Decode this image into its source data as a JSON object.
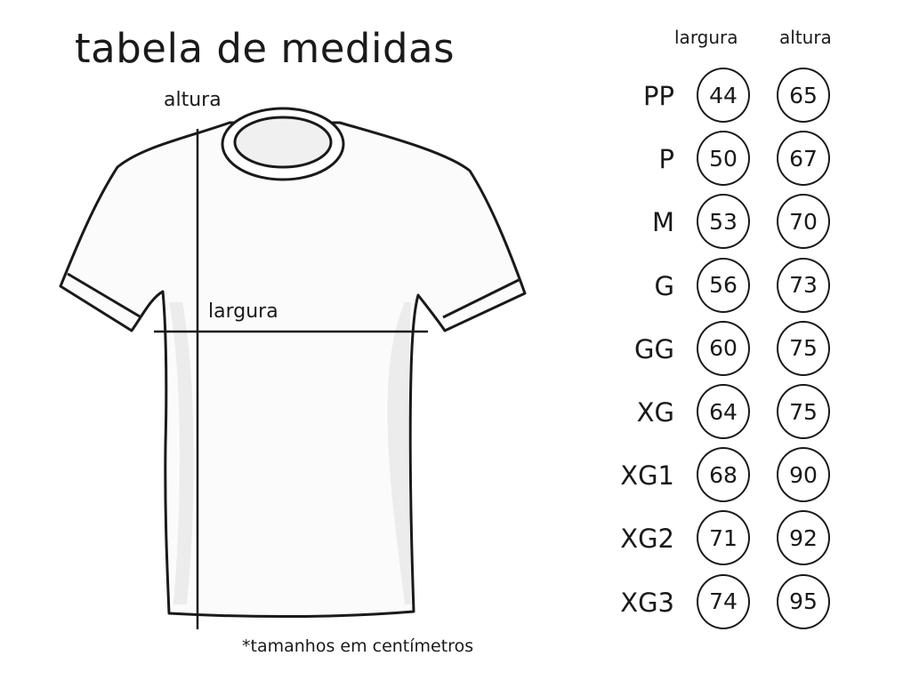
{
  "title": "tabela de medidas",
  "diagram": {
    "height_label": "altura",
    "width_label": "largura"
  },
  "table": {
    "columns": [
      "largura",
      "altura"
    ],
    "rows": [
      {
        "size": "PP",
        "largura": "44",
        "altura": "65"
      },
      {
        "size": "P",
        "largura": "50",
        "altura": "67"
      },
      {
        "size": "M",
        "largura": "53",
        "altura": "70"
      },
      {
        "size": "G",
        "largura": "56",
        "altura": "73"
      },
      {
        "size": "GG",
        "largura": "60",
        "altura": "75"
      },
      {
        "size": "XG",
        "largura": "64",
        "altura": "75"
      },
      {
        "size": "XG1",
        "largura": "68",
        "altura": "90"
      },
      {
        "size": "XG2",
        "largura": "71",
        "altura": "92"
      },
      {
        "size": "XG3",
        "largura": "74",
        "altura": "95"
      }
    ]
  },
  "footnote": "*tamanhos em centímetros"
}
